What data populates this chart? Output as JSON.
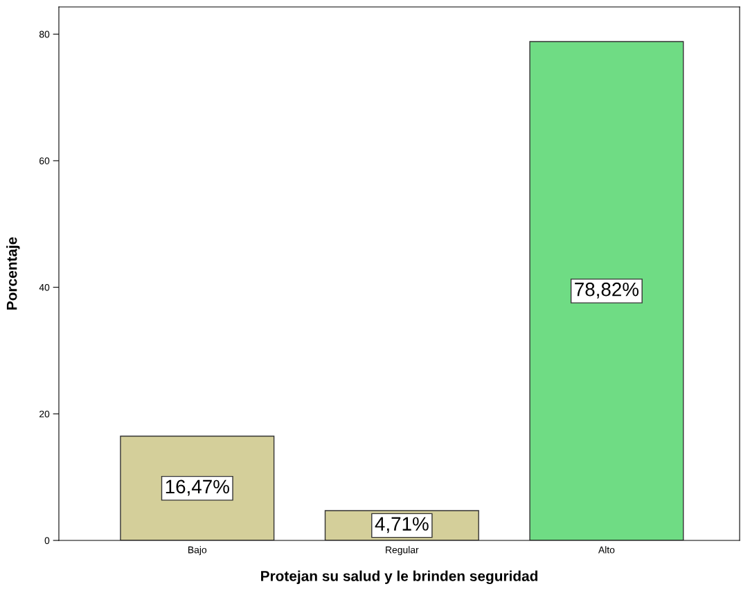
{
  "chart_data": {
    "type": "bar",
    "xlabel": "Protejan su salud y le brinden seguridad",
    "ylabel": "Porcentaje",
    "categories": [
      "Bajo",
      "Regular",
      "Alto"
    ],
    "values": [
      16.47,
      4.71,
      78.82
    ],
    "colors": [
      "#d4cf9a",
      "#d4cf9a",
      "#6fdc84"
    ],
    "value_labels": [
      "16,47%",
      "4,71%",
      "78,82%"
    ],
    "ylim": [
      0,
      84.3
    ],
    "yticks": [
      0,
      20,
      40,
      60,
      80
    ],
    "grid": false
  }
}
